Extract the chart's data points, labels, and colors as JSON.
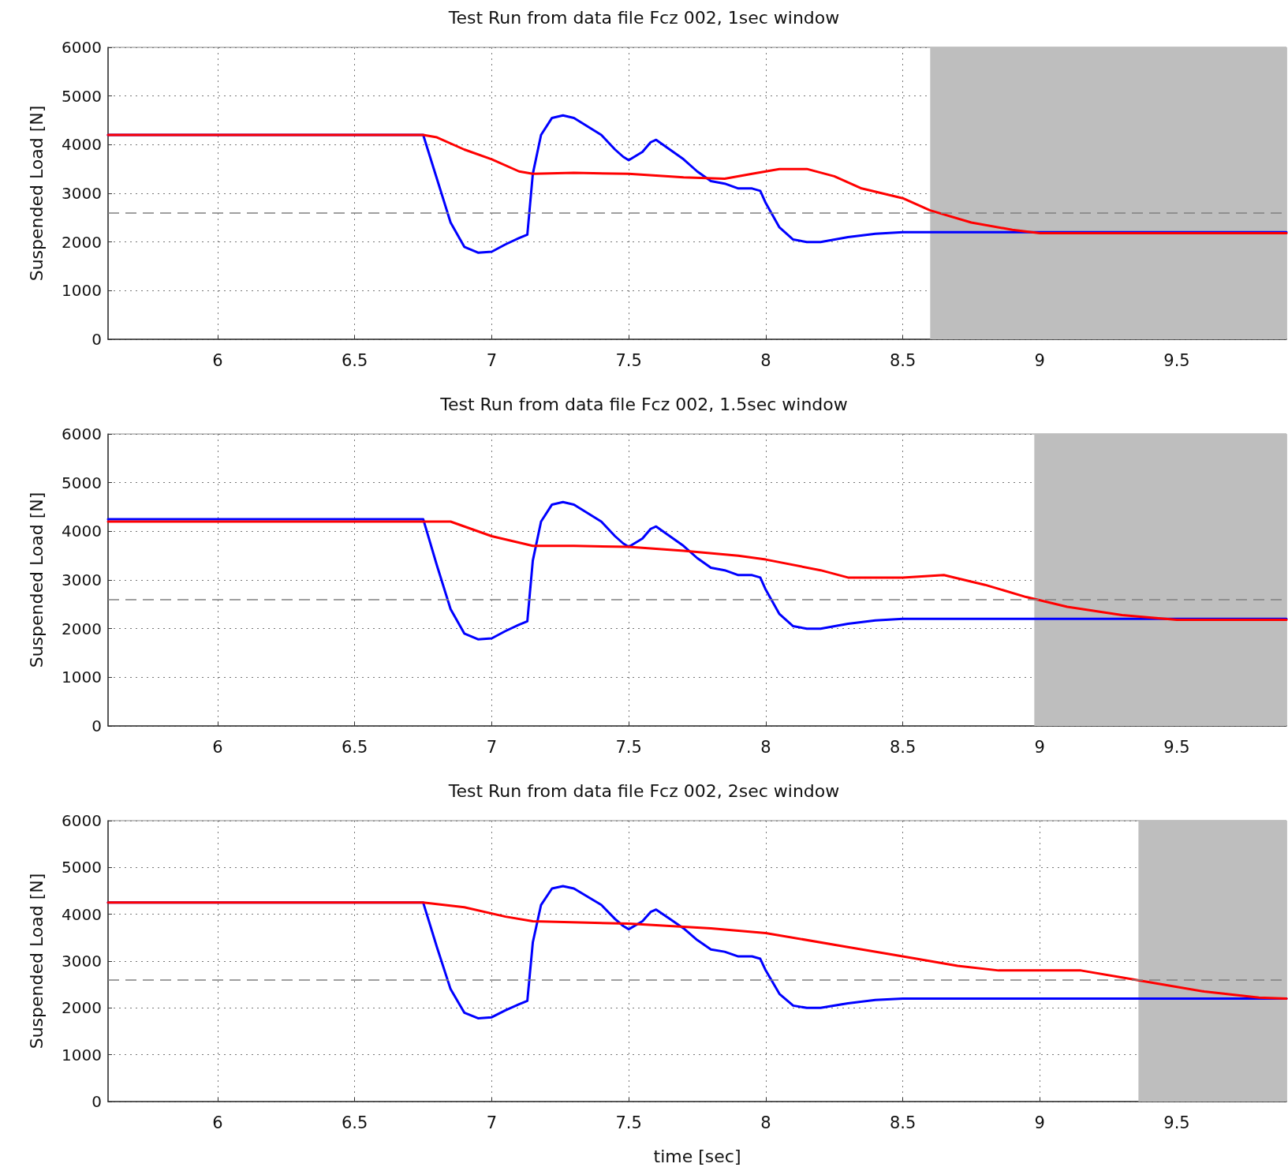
{
  "chart_data": [
    {
      "type": "line",
      "title": "Test Run from data file Fcz 002, 1sec window",
      "ylabel": "Suspended Load [N]",
      "xlim": [
        5.6,
        9.9
      ],
      "xticks": [
        6,
        6.5,
        7,
        7.5,
        8,
        8.5,
        9,
        9.5
      ],
      "ylim": [
        0,
        6000
      ],
      "yticks": [
        0,
        1000,
        2000,
        3000,
        4000,
        5000,
        6000
      ],
      "grid": true,
      "marker": "none",
      "line_style": "solid",
      "series": [
        {
          "color": "#0000ff",
          "x": [
            5.6,
            6.75,
            6.8,
            6.85,
            6.9,
            6.95,
            7.0,
            7.05,
            7.1,
            7.13,
            7.15,
            7.18,
            7.22,
            7.26,
            7.3,
            7.4,
            7.45,
            7.48,
            7.5,
            7.55,
            7.58,
            7.6,
            7.65,
            7.7,
            7.75,
            7.8,
            7.85,
            7.9,
            7.95,
            7.98,
            8.0,
            8.05,
            8.1,
            8.15,
            8.2,
            8.3,
            8.4,
            8.5,
            8.6,
            9.9
          ],
          "values": [
            4200,
            4200,
            3300,
            2400,
            1900,
            1780,
            1800,
            1950,
            2080,
            2150,
            3400,
            4200,
            4550,
            4600,
            4550,
            4200,
            3900,
            3750,
            3680,
            3850,
            4050,
            4100,
            3900,
            3700,
            3450,
            3250,
            3200,
            3100,
            3100,
            3050,
            2800,
            2300,
            2050,
            2000,
            2000,
            2100,
            2170,
            2200,
            2200,
            2200
          ]
        },
        {
          "color": "#ff0000",
          "x": [
            5.6,
            6.75,
            6.8,
            6.9,
            7.0,
            7.1,
            7.15,
            7.3,
            7.5,
            7.7,
            7.85,
            7.95,
            8.05,
            8.15,
            8.25,
            8.35,
            8.5,
            8.6,
            8.75,
            8.9,
            9.0,
            9.2,
            9.9
          ],
          "values": [
            4200,
            4200,
            4150,
            3900,
            3700,
            3450,
            3400,
            3420,
            3400,
            3330,
            3300,
            3400,
            3500,
            3500,
            3350,
            3100,
            2900,
            2650,
            2400,
            2250,
            2180,
            2180,
            2180
          ]
        }
      ],
      "ref_lines": [
        {
          "axis": "y",
          "value": 2600,
          "color": "#808080",
          "line_style": "dashed"
        }
      ],
      "bands": [
        {
          "axis": "x",
          "from": 8.6,
          "to": 9.9,
          "color": "#bebebe"
        }
      ],
      "tick_labels": true
    },
    {
      "type": "line",
      "title": "Test Run from data file Fcz 002, 1.5sec window",
      "ylabel": "Suspended Load [N]",
      "xlim": [
        5.6,
        9.9
      ],
      "xticks": [
        6,
        6.5,
        7,
        7.5,
        8,
        8.5,
        9,
        9.5
      ],
      "ylim": [
        0,
        6000
      ],
      "yticks": [
        0,
        1000,
        2000,
        3000,
        4000,
        5000,
        6000
      ],
      "grid": true,
      "marker": "none",
      "line_style": "solid",
      "series": [
        {
          "color": "#0000ff",
          "x": [
            5.6,
            6.75,
            6.8,
            6.85,
            6.9,
            6.95,
            7.0,
            7.05,
            7.1,
            7.13,
            7.15,
            7.18,
            7.22,
            7.26,
            7.3,
            7.4,
            7.45,
            7.48,
            7.5,
            7.55,
            7.58,
            7.6,
            7.65,
            7.7,
            7.75,
            7.8,
            7.85,
            7.9,
            7.95,
            7.98,
            8.0,
            8.05,
            8.1,
            8.15,
            8.2,
            8.3,
            8.4,
            8.5,
            8.6,
            9.9
          ],
          "values": [
            4250,
            4250,
            3300,
            2400,
            1900,
            1780,
            1800,
            1950,
            2080,
            2150,
            3400,
            4200,
            4550,
            4600,
            4550,
            4200,
            3900,
            3750,
            3680,
            3850,
            4050,
            4100,
            3900,
            3700,
            3450,
            3250,
            3200,
            3100,
            3100,
            3050,
            2800,
            2300,
            2050,
            2000,
            2000,
            2100,
            2170,
            2200,
            2200,
            2200
          ]
        },
        {
          "color": "#ff0000",
          "x": [
            5.6,
            6.75,
            6.85,
            7.0,
            7.15,
            7.3,
            7.5,
            7.7,
            7.9,
            8.0,
            8.2,
            8.3,
            8.5,
            8.65,
            8.8,
            8.95,
            9.1,
            9.3,
            9.5,
            9.9
          ],
          "values": [
            4200,
            4200,
            4200,
            3900,
            3700,
            3700,
            3680,
            3600,
            3500,
            3420,
            3200,
            3050,
            3050,
            3100,
            2900,
            2650,
            2450,
            2280,
            2180,
            2180
          ]
        }
      ],
      "ref_lines": [
        {
          "axis": "y",
          "value": 2600,
          "color": "#808080",
          "line_style": "dashed"
        }
      ],
      "bands": [
        {
          "axis": "x",
          "from": 8.98,
          "to": 9.9,
          "color": "#bebebe"
        }
      ],
      "tick_labels": true
    },
    {
      "type": "line",
      "title": "Test Run from data file Fcz 002, 2sec window",
      "xlabel": "time [sec]",
      "ylabel": "Suspended Load [N]",
      "xlim": [
        5.6,
        9.9
      ],
      "xticks": [
        6,
        6.5,
        7,
        7.5,
        8,
        8.5,
        9,
        9.5
      ],
      "ylim": [
        0,
        6000
      ],
      "yticks": [
        0,
        1000,
        2000,
        3000,
        4000,
        5000,
        6000
      ],
      "grid": true,
      "marker": "none",
      "line_style": "solid",
      "series": [
        {
          "color": "#0000ff",
          "x": [
            5.6,
            6.75,
            6.8,
            6.85,
            6.9,
            6.95,
            7.0,
            7.05,
            7.1,
            7.13,
            7.15,
            7.18,
            7.22,
            7.26,
            7.3,
            7.4,
            7.45,
            7.48,
            7.5,
            7.55,
            7.58,
            7.6,
            7.65,
            7.7,
            7.75,
            7.8,
            7.85,
            7.9,
            7.95,
            7.98,
            8.0,
            8.05,
            8.1,
            8.15,
            8.2,
            8.3,
            8.4,
            8.5,
            8.6,
            9.9
          ],
          "values": [
            4250,
            4250,
            3300,
            2400,
            1900,
            1780,
            1800,
            1950,
            2080,
            2150,
            3400,
            4200,
            4550,
            4600,
            4550,
            4200,
            3900,
            3750,
            3680,
            3850,
            4050,
            4100,
            3900,
            3700,
            3450,
            3250,
            3200,
            3100,
            3100,
            3050,
            2800,
            2300,
            2050,
            2000,
            2000,
            2100,
            2170,
            2200,
            2200,
            2200
          ]
        },
        {
          "color": "#ff0000",
          "x": [
            5.6,
            6.75,
            6.9,
            7.05,
            7.15,
            7.5,
            7.8,
            8.0,
            8.3,
            8.5,
            8.7,
            8.85,
            9.0,
            9.15,
            9.3,
            9.4,
            9.6,
            9.8,
            9.9
          ],
          "values": [
            4250,
            4250,
            4150,
            3950,
            3850,
            3800,
            3700,
            3600,
            3300,
            3100,
            2900,
            2800,
            2800,
            2800,
            2650,
            2550,
            2350,
            2220,
            2200
          ]
        }
      ],
      "ref_lines": [
        {
          "axis": "y",
          "value": 2600,
          "color": "#808080",
          "line_style": "dashed"
        }
      ],
      "bands": [
        {
          "axis": "x",
          "from": 9.36,
          "to": 9.9,
          "color": "#bebebe"
        }
      ],
      "tick_labels": true
    }
  ]
}
